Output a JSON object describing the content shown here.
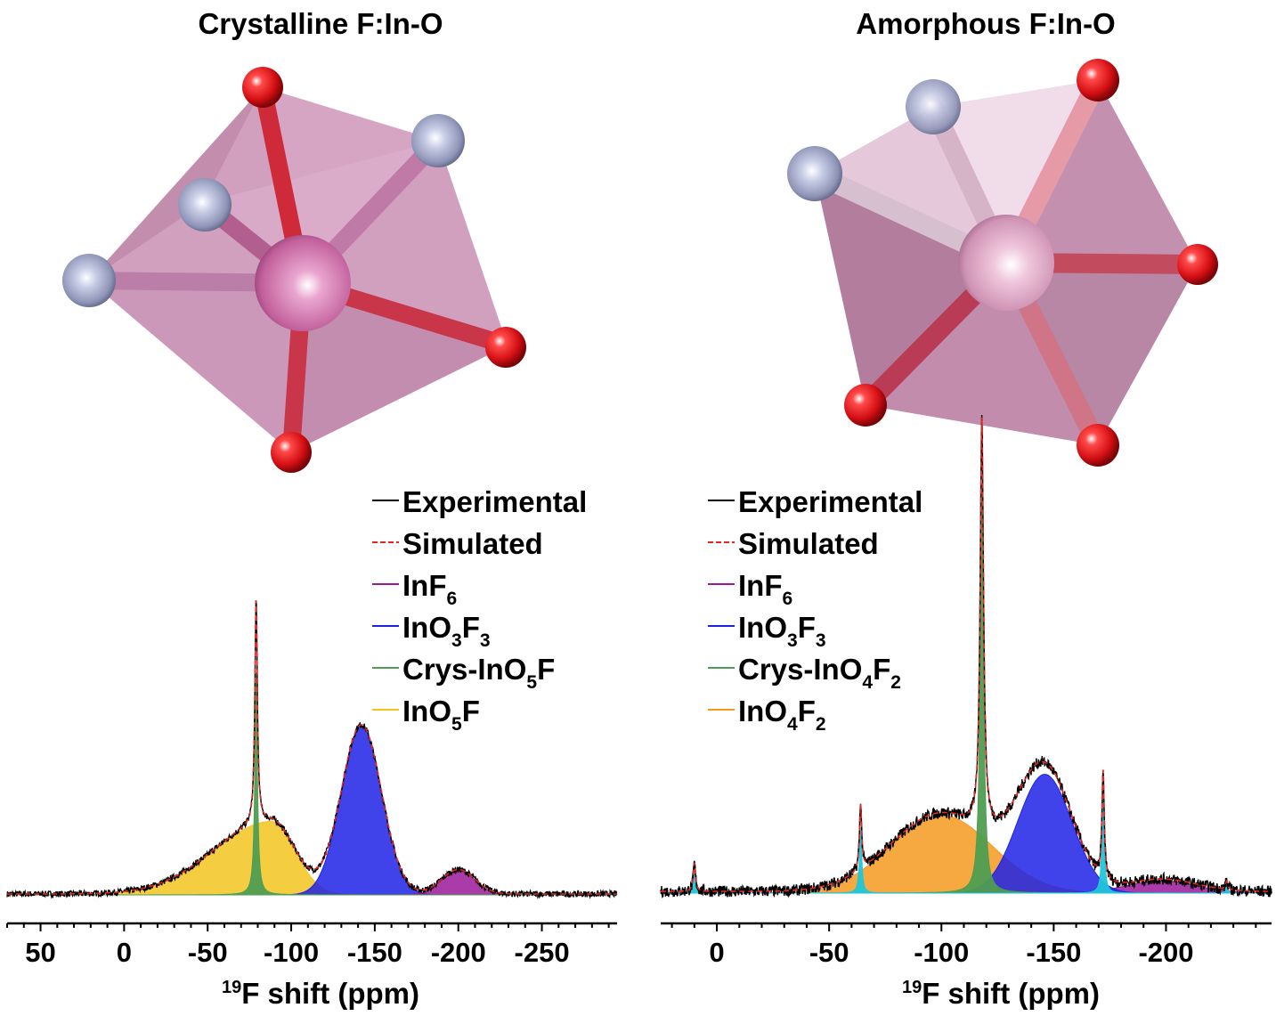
{
  "panels": [
    {
      "title": "Crystalline F:In-O",
      "colors": {
        "polyhedron": "#c98fb4",
        "oxygen": "#e0141b",
        "fluorine": "#a3a9c8",
        "indium": "#d98fbc"
      }
    },
    {
      "title": "Amorphous F:In-O",
      "colors": {
        "polyhedron": "#b57a9f",
        "oxygen": "#e0141b",
        "fluorine": "#a3a9c8",
        "indium": "#e8b5d0"
      }
    }
  ],
  "chart_data": [
    {
      "type": "line",
      "xlabel_sup": "19",
      "xlabel": "F shift (ppm)",
      "xlim": [
        70,
        -295
      ],
      "reversed_x": true,
      "xticks": [
        50,
        0,
        -50,
        -100,
        -150,
        -200,
        -250
      ],
      "tick_labels": [
        "50",
        "0",
        "-50",
        "-100",
        "-150",
        "-200",
        "-250"
      ],
      "legend": [
        {
          "label": "Experimental",
          "color": "#000000",
          "style": "solid"
        },
        {
          "label": "Simulated",
          "color": "#e8251f",
          "style": "dashed"
        },
        {
          "label": "InF",
          "sub": "6",
          "color": "#9b1a9b",
          "style": "solid"
        },
        {
          "label": "InO",
          "sub": "3",
          "label2": "F",
          "sub2": "3",
          "color": "#1e22e6",
          "style": "solid"
        },
        {
          "label": "Crys-InO",
          "sub": "5",
          "label2": "F",
          "color": "#4f9d52",
          "style": "solid"
        },
        {
          "label": "InO",
          "sub": "5",
          "label2": "F",
          "color": "#f2c51e",
          "style": "solid"
        }
      ],
      "series": [
        {
          "name": "InF6",
          "color": "#9b1a9b",
          "center": -200,
          "height": 0.11,
          "width": 14
        },
        {
          "name": "InO3F3",
          "color": "#1e22e6",
          "center": -142,
          "height": 0.76,
          "width": 17
        },
        {
          "name": "Crys-InO5F",
          "color": "#4f9d52",
          "center": -79,
          "height": 1.0,
          "width": 0.9
        },
        {
          "name": "InO5F",
          "color": "#f2c51e",
          "center": -88,
          "height": 0.33,
          "width": 20,
          "tail": 48
        }
      ]
    },
    {
      "type": "line",
      "xlabel_sup": "19",
      "xlabel": "F shift (ppm)",
      "xlim": [
        25,
        -247
      ],
      "reversed_x": true,
      "xticks": [
        0,
        -50,
        -100,
        -150,
        -200
      ],
      "tick_labels": [
        "0",
        "-50",
        "-100",
        "-150",
        "-200"
      ],
      "legend": [
        {
          "label": "Experimental",
          "color": "#000000",
          "style": "solid"
        },
        {
          "label": "Simulated",
          "color": "#e8251f",
          "style": "dashed"
        },
        {
          "label": "InF",
          "sub": "6",
          "color": "#9b1a9b",
          "style": "solid"
        },
        {
          "label": "InO",
          "sub": "3",
          "label2": "F",
          "sub2": "3",
          "color": "#1e22e6",
          "style": "solid"
        },
        {
          "label": "Crys-InO",
          "sub": "4",
          "label2": "F",
          "sub2": "2",
          "color": "#4f9d52",
          "style": "solid"
        },
        {
          "label": "InO",
          "sub": "4",
          "label2": "F",
          "sub2": "2",
          "color": "#f39a1e",
          "style": "solid"
        }
      ],
      "series": [
        {
          "name": "InF6",
          "color": "#9b1a9b",
          "center": -198,
          "height": 0.03,
          "width": 22
        },
        {
          "name": "InO3F3",
          "color": "#1e22e6",
          "center": -146,
          "height": 0.29,
          "width": 17
        },
        {
          "name": "Crys-InO4F2",
          "color": "#4f9d52",
          "center": -118,
          "height": 1.0,
          "width": 0.9
        },
        {
          "name": "InO4F2",
          "color": "#f39a1e",
          "center": -100,
          "height": 0.19,
          "width": 32
        },
        {
          "name": "sidebands",
          "color": "#20c6d8",
          "positions": [
            10,
            -64,
            -172,
            -227
          ],
          "heights": [
            0.07,
            0.16,
            0.26,
            0.02
          ],
          "width": 0.6
        }
      ]
    }
  ]
}
